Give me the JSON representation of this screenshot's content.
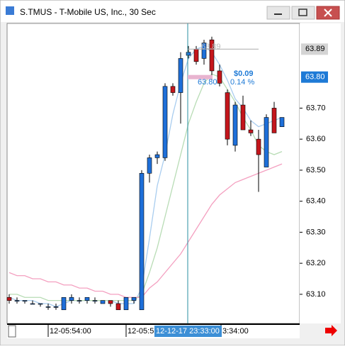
{
  "window": {
    "title": "S.TMUS - T-Mobile US, Inc., 30 Sec"
  },
  "chart_data": {
    "type": "candlestick",
    "ylim": [
      63.006,
      63.973
    ],
    "yticks": [
      {
        "value": 63.1,
        "label": "63.10"
      },
      {
        "value": 63.2,
        "label": "63.20"
      },
      {
        "value": 63.3,
        "label": "63.30"
      },
      {
        "value": 63.4,
        "label": "63.40"
      },
      {
        "value": 63.5,
        "label": "63.50"
      },
      {
        "value": 63.6,
        "label": "63.60"
      },
      {
        "value": 63.7,
        "label": "63.70"
      }
    ],
    "price_markers": [
      {
        "value": 63.89,
        "label": "63.89",
        "color": "#d4d4d4",
        "text_color": "#000000"
      },
      {
        "value": 63.8,
        "label": "63.80",
        "color": "#1e7ad6",
        "text_color": "#ffffff"
      }
    ],
    "x_labels": [
      "12-05:54:00",
      "12-05:5",
      "3:34:00"
    ],
    "crosshair_label": "12-12-17 23:33:00",
    "up_color": "#1e6fd9",
    "down_color": "#c4161c",
    "open": [
      63.09,
      63.08,
      63.08,
      63.07,
      63.07,
      63.06,
      63.06,
      63.05,
      63.08,
      63.08,
      63.08,
      63.08,
      63.07,
      63.08,
      63.07,
      63.05,
      63.08,
      63.05,
      63.49,
      63.54,
      63.54,
      63.77,
      63.75,
      63.87,
      63.89,
      63.86,
      63.92,
      63.82,
      63.75,
      63.58,
      63.71,
      63.63,
      63.6,
      63.51,
      63.7,
      63.64
    ],
    "high": [
      63.1,
      63.09,
      63.08,
      63.08,
      63.07,
      63.07,
      63.07,
      63.09,
      63.1,
      63.09,
      63.09,
      63.09,
      63.08,
      63.08,
      63.08,
      63.09,
      63.09,
      63.5,
      63.55,
      63.56,
      63.78,
      63.78,
      63.88,
      63.9,
      63.9,
      63.92,
      63.93,
      63.84,
      63.76,
      63.72,
      63.74,
      63.66,
      63.63,
      63.68,
      63.72,
      63.67
    ],
    "low": [
      63.07,
      63.07,
      63.07,
      63.07,
      63.06,
      63.05,
      63.05,
      63.05,
      63.07,
      63.07,
      63.07,
      63.07,
      63.07,
      63.06,
      63.05,
      63.05,
      63.07,
      63.05,
      63.46,
      63.52,
      63.53,
      63.74,
      63.65,
      63.86,
      63.84,
      63.84,
      63.79,
      63.77,
      63.58,
      63.56,
      63.63,
      63.61,
      63.43,
      63.51,
      63.62,
      63.64
    ],
    "close": [
      63.08,
      63.08,
      63.08,
      63.07,
      63.07,
      63.06,
      63.06,
      63.09,
      63.09,
      63.08,
      63.09,
      63.08,
      63.08,
      63.07,
      63.05,
      63.09,
      63.09,
      63.49,
      63.54,
      63.55,
      63.77,
      63.75,
      63.86,
      63.88,
      63.85,
      63.91,
      63.82,
      63.78,
      63.6,
      63.71,
      63.63,
      63.62,
      63.55,
      63.67,
      63.62,
      63.67
    ],
    "series": [
      {
        "color": "#a9cdef",
        "values": [
          63.09,
          63.08,
          63.08,
          63.08,
          63.07,
          63.07,
          63.06,
          63.07,
          63.08,
          63.08,
          63.08,
          63.08,
          63.08,
          63.08,
          63.07,
          63.07,
          63.07,
          63.12,
          63.28,
          63.45,
          63.55,
          63.68,
          63.78,
          63.86,
          63.89,
          63.9,
          63.88,
          63.84,
          63.79,
          63.73,
          63.7,
          63.66,
          63.64,
          63.65,
          63.66,
          63.67
        ]
      },
      {
        "color": "#b8dcb5",
        "values": [
          63.1,
          63.1,
          63.09,
          63.09,
          63.09,
          63.08,
          63.08,
          63.08,
          63.08,
          63.08,
          63.08,
          63.08,
          63.08,
          63.08,
          63.08,
          63.08,
          63.08,
          63.1,
          63.17,
          63.25,
          63.35,
          63.45,
          63.55,
          63.65,
          63.72,
          63.78,
          63.81,
          63.8,
          63.76,
          63.72,
          63.67,
          63.63,
          63.58,
          63.56,
          63.55,
          63.56
        ]
      },
      {
        "color": "#f4a0c0",
        "values": [
          63.17,
          63.16,
          63.16,
          63.15,
          63.15,
          63.14,
          63.14,
          63.13,
          63.13,
          63.12,
          63.12,
          63.11,
          63.11,
          63.1,
          63.1,
          63.09,
          63.09,
          63.09,
          63.12,
          63.14,
          63.17,
          63.2,
          63.23,
          63.27,
          63.31,
          63.35,
          63.39,
          63.42,
          63.44,
          63.46,
          63.47,
          63.48,
          63.49,
          63.5,
          63.51,
          63.52
        ]
      }
    ],
    "annotations": [
      "63.89",
      "$0.09",
      "63.80",
      "0.14 %"
    ]
  }
}
